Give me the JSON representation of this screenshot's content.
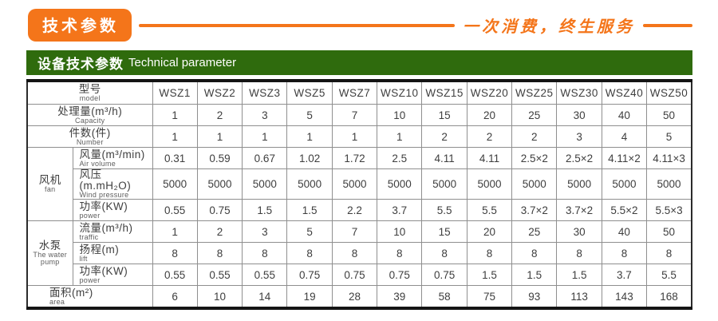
{
  "topbar": {
    "badge_label": "技术参数",
    "slogan": "一次消费，终生服务"
  },
  "section_header": {
    "title_zh": "设备技术参数",
    "title_en": "Technical parameter"
  },
  "colors": {
    "accent_orange": "#F4751A",
    "header_green": "#2F6B0D",
    "table_border_dark": "#141414",
    "table_grid_gray": "#8F8F8F",
    "table_text": "#3E3E3E"
  },
  "table": {
    "model_header": {
      "zh": "型号",
      "en": "model"
    },
    "models": [
      "WSZ1",
      "WSZ2",
      "WSZ3",
      "WSZ5",
      "WSZ7",
      "WSZ10",
      "WSZ15",
      "WSZ20",
      "WSZ25",
      "WSZ30",
      "WSZ40",
      "WSZ50"
    ],
    "groups": {
      "fan": {
        "zh": "风机",
        "en": "fan"
      },
      "pump": {
        "zh": "水泵",
        "en": "The water pump"
      }
    },
    "rows": [
      {
        "zh": "处理量(m³/h)",
        "en": "Capacity",
        "values": [
          "1",
          "2",
          "3",
          "5",
          "7",
          "10",
          "15",
          "20",
          "25",
          "30",
          "40",
          "50"
        ]
      },
      {
        "zh": "件数(件)",
        "en": "Number",
        "values": [
          "1",
          "1",
          "1",
          "1",
          "1",
          "1",
          "2",
          "2",
          "2",
          "3",
          "4",
          "5"
        ]
      },
      {
        "zh": "风量(m³/min)",
        "en": "Air volume",
        "values": [
          "0.31",
          "0.59",
          "0.67",
          "1.02",
          "1.72",
          "2.5",
          "4.11",
          "4.11",
          "2.5×2",
          "2.5×2",
          "4.11×2",
          "4.11×3"
        ]
      },
      {
        "zh": "风压(m.mH₂O)",
        "en": "Wind pressure",
        "values": [
          "5000",
          "5000",
          "5000",
          "5000",
          "5000",
          "5000",
          "5000",
          "5000",
          "5000",
          "5000",
          "5000",
          "5000"
        ]
      },
      {
        "zh": "功率(KW)",
        "en": "power",
        "values": [
          "0.55",
          "0.75",
          "1.5",
          "1.5",
          "2.2",
          "3.7",
          "5.5",
          "5.5",
          "3.7×2",
          "3.7×2",
          "5.5×2",
          "5.5×3"
        ]
      },
      {
        "zh": "流量(m³/h)",
        "en": "traffic",
        "values": [
          "1",
          "2",
          "3",
          "5",
          "7",
          "10",
          "15",
          "20",
          "25",
          "30",
          "40",
          "50"
        ]
      },
      {
        "zh": "扬程(m)",
        "en": "lift",
        "values": [
          "8",
          "8",
          "8",
          "8",
          "8",
          "8",
          "8",
          "8",
          "8",
          "8",
          "8",
          "8"
        ]
      },
      {
        "zh": "功率(KW)",
        "en": "power",
        "values": [
          "0.55",
          "0.55",
          "0.55",
          "0.75",
          "0.75",
          "0.75",
          "0.75",
          "1.5",
          "1.5",
          "1.5",
          "3.7",
          "5.5"
        ]
      },
      {
        "zh": "面积(m²)",
        "en": "area",
        "values": [
          "6",
          "10",
          "14",
          "19",
          "28",
          "39",
          "58",
          "75",
          "93",
          "113",
          "143",
          "168"
        ]
      }
    ]
  }
}
